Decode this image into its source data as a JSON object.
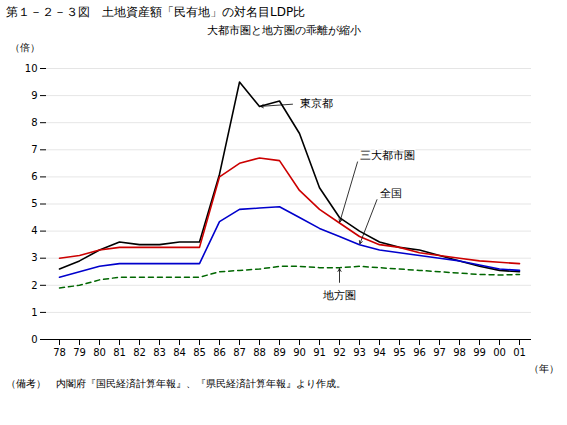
{
  "chart_data": {
    "type": "line",
    "title": "第１－２－３図　土地資産額「民有地」の対名目LDP比",
    "subtitle": "大都市圏と地方圏の乖離が縮小",
    "xlabel": "（年）",
    "ylabel": "（倍）",
    "note": "（備考）　内閣府『国民経済計算年報』、『県民経済計算年報』より作成。",
    "categories": [
      "78",
      "79",
      "80",
      "81",
      "82",
      "83",
      "84",
      "85",
      "86",
      "87",
      "88",
      "89",
      "90",
      "91",
      "92",
      "93",
      "94",
      "95",
      "96",
      "97",
      "98",
      "99",
      "00",
      "01"
    ],
    "series": [
      {
        "name": "東京都",
        "color": "#000000",
        "line_style": "solid",
        "values": [
          2.6,
          2.9,
          3.3,
          3.6,
          3.5,
          3.5,
          3.6,
          3.6,
          6.1,
          9.5,
          8.6,
          8.8,
          7.6,
          5.6,
          4.5,
          4.0,
          3.6,
          3.4,
          3.3,
          3.1,
          2.9,
          2.7,
          2.55,
          2.5
        ]
      },
      {
        "name": "三大都市圏",
        "color": "#cc0000",
        "line_style": "solid",
        "values": [
          3.0,
          3.1,
          3.3,
          3.4,
          3.4,
          3.4,
          3.4,
          3.4,
          6.0,
          6.5,
          6.7,
          6.6,
          5.5,
          4.8,
          4.3,
          3.8,
          3.5,
          3.4,
          3.2,
          3.1,
          3.0,
          2.9,
          2.85,
          2.8
        ]
      },
      {
        "name": "全国",
        "color": "#0000cc",
        "line_style": "solid",
        "values": [
          2.3,
          2.5,
          2.7,
          2.8,
          2.8,
          2.8,
          2.8,
          2.8,
          4.35,
          4.8,
          4.85,
          4.9,
          4.5,
          4.1,
          3.8,
          3.5,
          3.3,
          3.2,
          3.1,
          3.0,
          2.9,
          2.75,
          2.6,
          2.55
        ]
      },
      {
        "name": "地方圏",
        "color": "#006600",
        "line_style": "dashed",
        "values": [
          1.9,
          2.0,
          2.2,
          2.3,
          2.3,
          2.3,
          2.3,
          2.3,
          2.5,
          2.55,
          2.6,
          2.7,
          2.7,
          2.65,
          2.65,
          2.7,
          2.65,
          2.6,
          2.55,
          2.5,
          2.45,
          2.4,
          2.38,
          2.4
        ]
      }
    ],
    "ylim": [
      0,
      10
    ],
    "yticks": [
      0,
      1,
      2,
      3,
      4,
      5,
      6,
      7,
      8,
      9,
      10
    ],
    "grid": true
  }
}
